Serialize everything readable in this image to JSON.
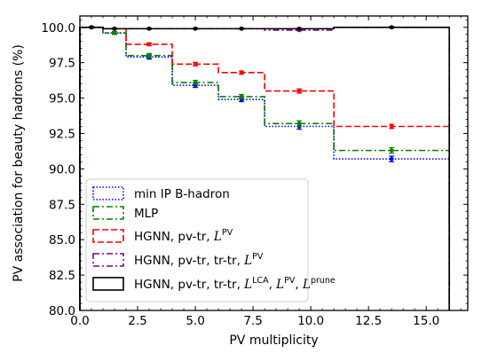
{
  "chart_data": {
    "type": "line",
    "step": true,
    "xlabel": "PV multiplicity",
    "ylabel": "PV association for beauty hadrons (%)",
    "xlim": [
      0,
      16.8
    ],
    "ylim": [
      80,
      100.8
    ],
    "xticks": [
      0,
      2.5,
      5,
      7.5,
      10,
      12.5,
      15
    ],
    "xtick_labels": [
      "0.0",
      "2.5",
      "5.0",
      "7.5",
      "10.0",
      "12.5",
      "15.0"
    ],
    "yticks": [
      80,
      82.5,
      85,
      87.5,
      90,
      92.5,
      95,
      97.5,
      100
    ],
    "ytick_labels": [
      "80.0",
      "82.5",
      "85.0",
      "87.5",
      "90.0",
      "92.5",
      "95.0",
      "97.5",
      "100.0"
    ],
    "grid": false,
    "legend_position": "lower-left",
    "bin_edges": [
      0,
      1,
      2,
      4,
      6,
      8,
      11,
      16
    ],
    "bin_centers": [
      0.5,
      1.5,
      3,
      5,
      7,
      9.5,
      13.5
    ],
    "series": [
      {
        "name": "min IP B-hadron",
        "color": "#0000ff",
        "style": "dotted",
        "values": [
          100.0,
          99.6,
          97.9,
          95.9,
          94.9,
          93.0,
          90.7
        ],
        "errors": [
          0.05,
          0.1,
          0.15,
          0.15,
          0.15,
          0.2,
          0.2
        ]
      },
      {
        "name": "MLP",
        "color": "#008000",
        "style": "dashdot",
        "values": [
          100.0,
          99.6,
          98.0,
          96.1,
          95.1,
          93.2,
          91.3
        ],
        "errors": [
          0.05,
          0.1,
          0.15,
          0.15,
          0.15,
          0.2,
          0.2
        ]
      },
      {
        "name_parts": [
          "HGNN, pv-tr, ",
          "L",
          "PV"
        ],
        "color": "#ff0000",
        "style": "dashed",
        "values": [
          100.0,
          99.9,
          98.8,
          97.4,
          96.8,
          95.5,
          93.0
        ],
        "errors": [
          0.05,
          0.05,
          0.1,
          0.12,
          0.12,
          0.15,
          0.15
        ]
      },
      {
        "name_parts": [
          "HGNN, pv-tr, tr-tr, ",
          "L",
          "PV"
        ],
        "color": "#800080",
        "style": "dashdot",
        "values": [
          100.0,
          99.9,
          99.9,
          99.9,
          99.9,
          99.8,
          100.0
        ],
        "errors": [
          0.03,
          0.03,
          0.03,
          0.03,
          0.03,
          0.05,
          0.05
        ]
      },
      {
        "name_parts": [
          "HGNN, pv-tr, tr-tr, ",
          "L",
          "LCA",
          ", ",
          "L",
          "PV",
          ", ",
          "L",
          "prune"
        ],
        "color": "#000000",
        "style": "solid",
        "values": [
          100.0,
          99.9,
          99.9,
          99.9,
          99.9,
          99.9,
          100.0
        ],
        "errors": [
          0.03,
          0.03,
          0.03,
          0.03,
          0.03,
          0.03,
          0.03
        ]
      }
    ]
  }
}
